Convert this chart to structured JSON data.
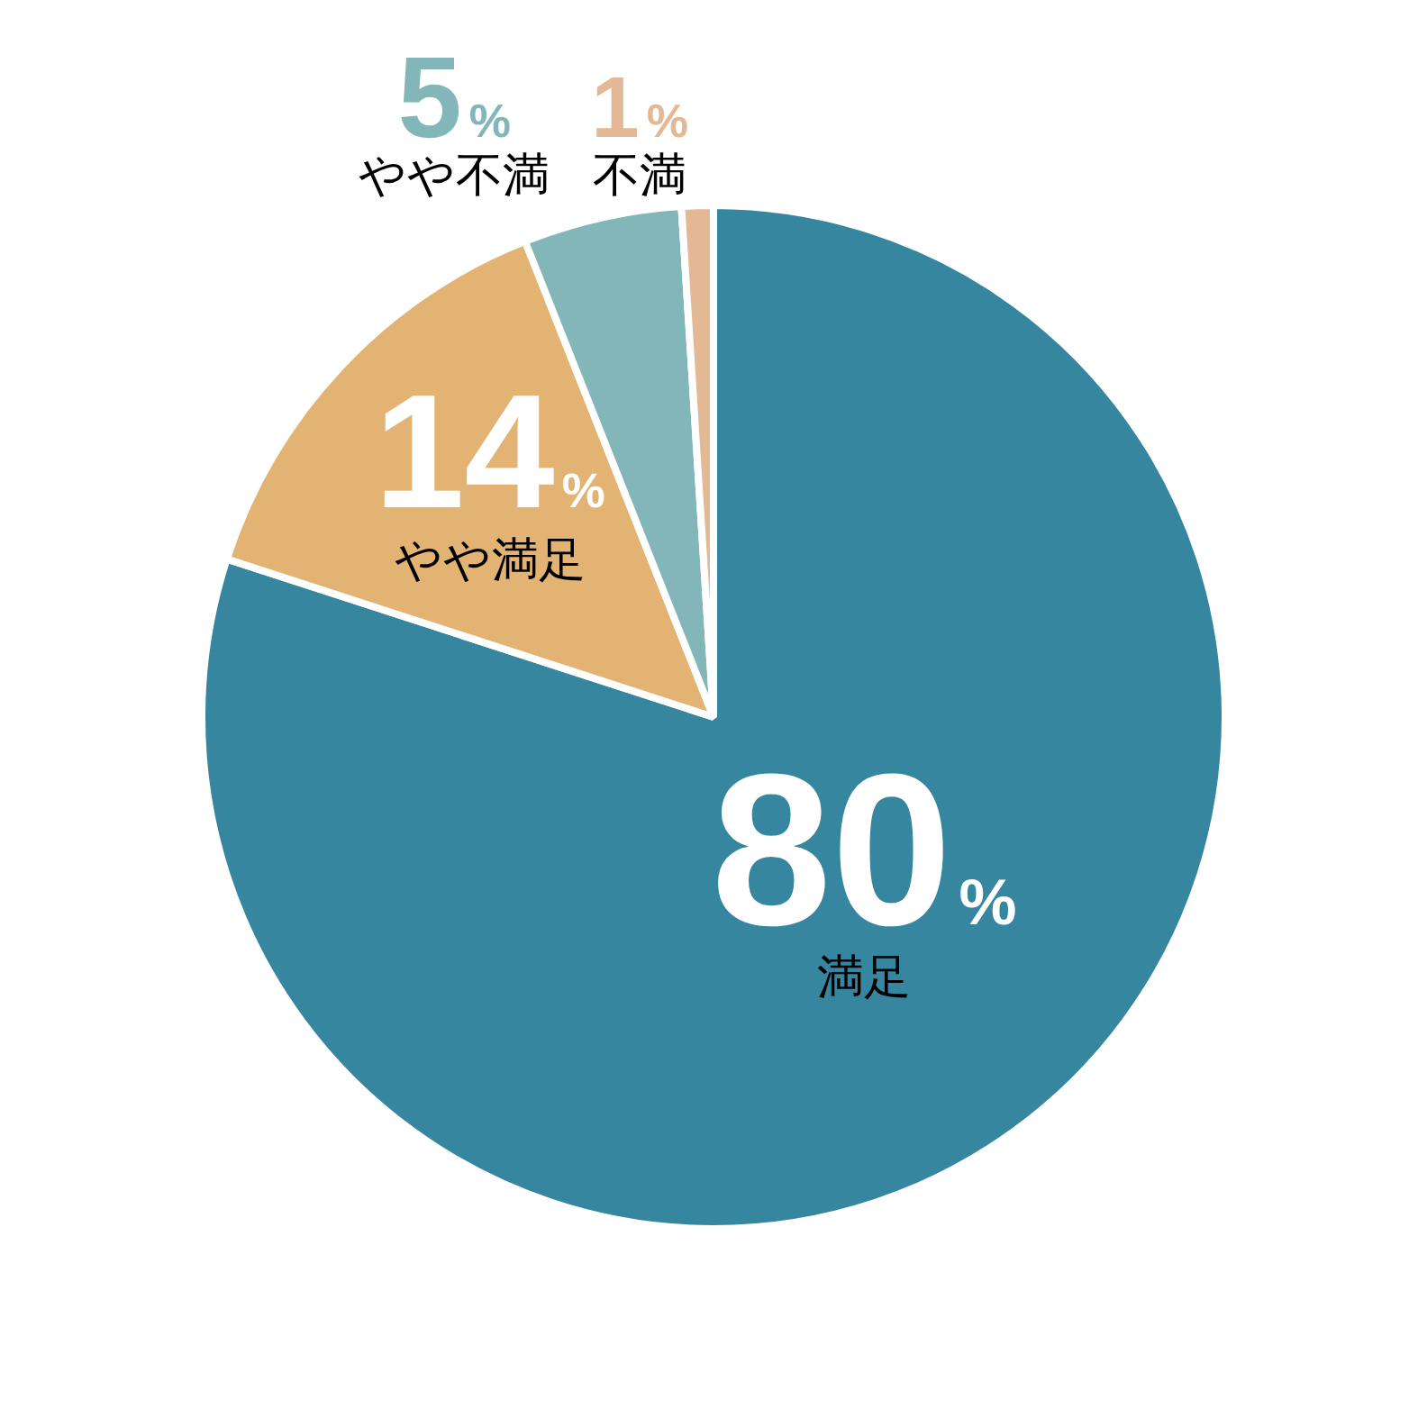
{
  "chart_data": {
    "type": "pie",
    "categories": [
      "満足",
      "やや満足",
      "やや不満",
      "不満"
    ],
    "values": [
      80,
      14,
      5,
      1
    ],
    "colors": [
      "#35869e",
      "#e3b373",
      "#82b6b8",
      "#e3b894"
    ],
    "value_labels": [
      "80%",
      "14%",
      "5%",
      "1%"
    ]
  }
}
